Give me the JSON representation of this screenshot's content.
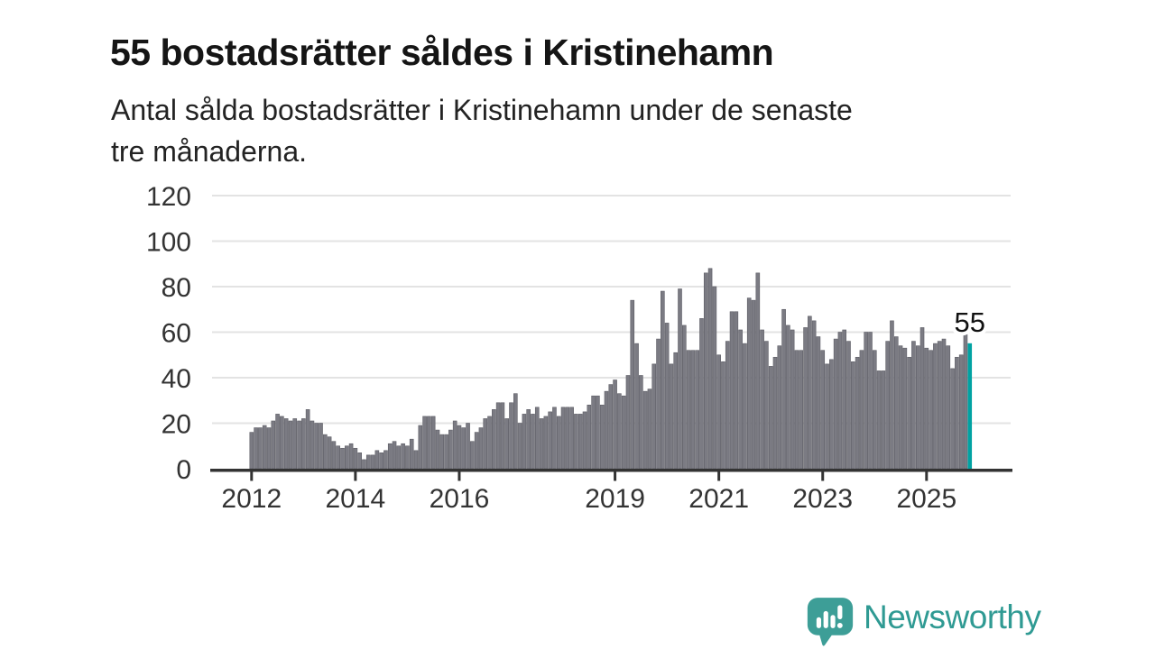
{
  "header": {
    "title": "55 bostadsrätter såldes i Kristinehamn",
    "subtitle": "Antal sålda bostadsrätter i Kristinehamn under de senaste tre månaderna.",
    "subtitle_lines": [
      "Antal sålda bostadsrätter i Kristinehamn under de senaste",
      "tre månaderna."
    ]
  },
  "chart_data": {
    "type": "bar",
    "title": "55 bostadsrätter såldes i Kristinehamn",
    "xlabel": "",
    "ylabel": "",
    "ylim": [
      0,
      120
    ],
    "y_ticks": [
      0,
      20,
      40,
      60,
      80,
      100,
      120
    ],
    "x_ticks": [
      2012,
      2014,
      2016,
      2019,
      2021,
      2023,
      2025
    ],
    "grid": true,
    "frequency": "monthly",
    "start": "2012-01",
    "end": "2025-11",
    "start_year": 2012,
    "values": [
      16,
      18,
      18,
      19,
      18,
      21,
      24,
      23,
      22,
      21,
      22,
      21,
      22,
      26,
      21,
      20,
      20,
      15,
      14,
      12,
      10,
      9,
      10,
      11,
      9,
      7,
      4,
      6,
      6,
      8,
      7,
      8,
      11,
      12,
      10,
      11,
      10,
      13,
      8,
      19,
      23,
      23,
      23,
      17,
      15,
      15,
      17,
      21,
      19,
      18,
      20,
      12,
      16,
      18,
      22,
      23,
      26,
      29,
      29,
      22,
      29,
      33,
      20,
      24,
      26,
      24,
      27,
      22,
      23,
      25,
      27,
      23,
      27,
      27,
      27,
      24,
      24,
      25,
      28,
      32,
      32,
      28,
      34,
      37,
      39,
      33,
      32,
      41,
      74,
      55,
      41,
      34,
      35,
      46,
      57,
      78,
      64,
      46,
      51,
      79,
      63,
      52,
      52,
      52,
      66,
      86,
      88,
      80,
      50,
      47,
      56,
      69,
      69,
      61,
      55,
      75,
      74,
      86,
      61,
      56,
      45,
      49,
      54,
      70,
      63,
      61,
      52,
      52,
      62,
      67,
      65,
      58,
      52,
      46,
      48,
      57,
      60,
      61,
      56,
      47,
      49,
      52,
      60,
      60,
      52,
      43,
      43,
      56,
      65,
      58,
      54,
      53,
      49,
      56,
      54,
      62,
      53,
      52,
      55,
      56,
      57,
      54,
      44,
      49,
      50,
      59,
      55
    ],
    "highlight_last": true,
    "last_value": 55,
    "last_value_label": "55",
    "bar_color": "#7b7b83",
    "bar_edge_color": "#5d5d65",
    "highlight_color": "#00a2a2",
    "grid_color": "#e3e3e3",
    "axis_line_color": "#333333",
    "axis_text_color": "#333333",
    "label_color": "#111111"
  },
  "branding": {
    "logo_text": "Newsworthy",
    "logo_color": "#2f9a93",
    "logo_icon": "speech-bubble-bar-chart-icon"
  }
}
